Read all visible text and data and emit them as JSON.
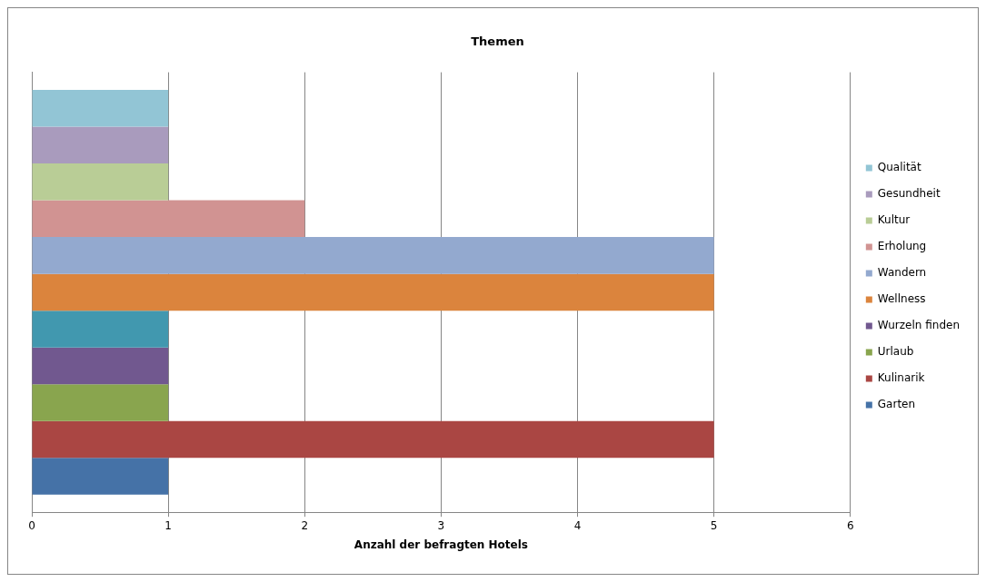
{
  "chart_data": {
    "type": "bar",
    "orientation": "horizontal",
    "title": "Themen",
    "xlabel": "Anzahl der befragten Hotels",
    "categories": [
      null
    ],
    "series": [
      {
        "name": "Garten",
        "color": "#4572a7",
        "values": [
          1
        ]
      },
      {
        "name": "Kulinarik",
        "color": "#aa4643",
        "values": [
          5
        ]
      },
      {
        "name": "Urlaub",
        "color": "#89a54e",
        "values": [
          1
        ]
      },
      {
        "name": "Wurzeln finden",
        "color": "#71588f",
        "values": [
          1
        ]
      },
      {
        "color": "#4198af",
        "values": [
          1
        ]
      },
      {
        "name": "Wellness",
        "color": "#db843d",
        "values": [
          5
        ]
      },
      {
        "name": "Wandern",
        "color": "#93a9cf",
        "values": [
          5
        ]
      },
      {
        "name": "Erholung",
        "color": "#d19392",
        "values": [
          2
        ]
      },
      {
        "name": "Kultur",
        "color": "#b9cd96",
        "values": [
          1
        ]
      },
      {
        "name": "Gesundheit",
        "color": "#a99bbd",
        "values": [
          1
        ]
      },
      {
        "name": "Qualität",
        "color": "#92c5d5",
        "values": [
          1
        ]
      }
    ],
    "xlim": [
      0,
      6
    ],
    "xticks": [
      0,
      1,
      2,
      3,
      4,
      5,
      6
    ],
    "grid": "x",
    "legend": "right"
  }
}
